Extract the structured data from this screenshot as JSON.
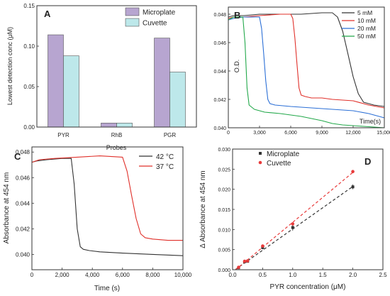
{
  "chart_data": [
    {
      "panel": "A",
      "type": "bar",
      "xlabel": "Probes",
      "ylabel": "Lowest detection conc (μM)",
      "categories": [
        "PYR",
        "RhB",
        "PGR"
      ],
      "ylim": [
        0,
        0.15
      ],
      "yticks": [
        "0.00",
        "0.05",
        "0.10",
        "0.15"
      ],
      "legend_position": "top-right",
      "series": [
        {
          "name": "Microplate",
          "color": "#b7a5d0",
          "values": [
            0.114,
            0.005,
            0.11
          ]
        },
        {
          "name": "Cuvette",
          "color": "#bde8ea",
          "values": [
            0.088,
            0.005,
            0.068
          ]
        }
      ]
    },
    {
      "panel": "B",
      "type": "line",
      "xlabel": "Time(s)",
      "ylabel": "O.D.",
      "xlim": [
        0,
        15000
      ],
      "ylim": [
        0.04,
        0.0485
      ],
      "xticks": [
        "0",
        "3,000",
        "6,000",
        "9,000",
        "12,000",
        "15,000"
      ],
      "yticks": [
        "0.040",
        "0.042",
        "0.044",
        "0.046",
        "0.048"
      ],
      "legend_position": "top-right",
      "series": [
        {
          "name": "5 mM",
          "color": "#333333",
          "x": [
            0,
            500,
            1500,
            3000,
            5000,
            7000,
            9000,
            10000,
            10500,
            11000,
            11500,
            12000,
            12500,
            13000,
            14000,
            15000
          ],
          "y": [
            0.0478,
            0.0479,
            0.0479,
            0.048,
            0.048,
            0.048,
            0.0481,
            0.0481,
            0.0478,
            0.0468,
            0.0452,
            0.0436,
            0.0424,
            0.0418,
            0.0416,
            0.0415
          ]
        },
        {
          "name": "10 mM",
          "color": "#e0302a",
          "x": [
            0,
            500,
            1500,
            3000,
            5000,
            6000,
            6200,
            6400,
            6600,
            6800,
            7000,
            7400,
            8000,
            9000,
            10000,
            12000,
            13500,
            15000
          ],
          "y": [
            0.0477,
            0.0478,
            0.0478,
            0.0479,
            0.048,
            0.048,
            0.0477,
            0.0463,
            0.0445,
            0.0428,
            0.0423,
            0.0422,
            0.0421,
            0.0421,
            0.042,
            0.0419,
            0.0416,
            0.0414
          ]
        },
        {
          "name": "20 mM",
          "color": "#2b6fd6",
          "x": [
            0,
            500,
            1500,
            3000,
            3200,
            3400,
            3600,
            3800,
            4000,
            4500,
            6000,
            8000,
            10000,
            12000,
            13500,
            15000
          ],
          "y": [
            0.0476,
            0.0477,
            0.0478,
            0.0478,
            0.047,
            0.0452,
            0.0433,
            0.042,
            0.0417,
            0.0416,
            0.0415,
            0.0414,
            0.0413,
            0.0412,
            0.041,
            0.0407
          ]
        },
        {
          "name": "50 mM",
          "color": "#22a84a",
          "x": [
            0,
            500,
            1000,
            1400,
            1600,
            1800,
            2000,
            2500,
            3500,
            5000,
            7000,
            9000,
            10000,
            11000,
            13000,
            15000
          ],
          "y": [
            0.0476,
            0.0478,
            0.0478,
            0.0478,
            0.046,
            0.0428,
            0.0416,
            0.0413,
            0.0411,
            0.041,
            0.0408,
            0.0405,
            0.0403,
            0.0402,
            0.0401,
            0.04
          ]
        }
      ]
    },
    {
      "panel": "C",
      "type": "line",
      "xlabel": "Time (s)",
      "ylabel": "Absorbance at 454 nm",
      "xlim": [
        0,
        10000
      ],
      "ylim": [
        0.0388,
        0.0484
      ],
      "xticks": [
        "0",
        "2,000",
        "4,000",
        "6,000",
        "8,000",
        "10,000"
      ],
      "yticks": [
        "0.040",
        "0.042",
        "0.044",
        "0.046",
        "0.048"
      ],
      "legend_position": "top-right",
      "series": [
        {
          "name": "42 °C",
          "color": "#333333",
          "x": [
            0,
            300,
            1000,
            2000,
            2600,
            2800,
            3000,
            3200,
            3400,
            3800,
            4500,
            6000,
            8000,
            10000
          ],
          "y": [
            0.0472,
            0.0473,
            0.0474,
            0.0475,
            0.0475,
            0.0455,
            0.042,
            0.0406,
            0.0404,
            0.0403,
            0.0402,
            0.0401,
            0.04,
            0.0399
          ]
        },
        {
          "name": "37 °C",
          "color": "#e0302a",
          "x": [
            0,
            500,
            1500,
            3000,
            4500,
            6000,
            6300,
            6600,
            6900,
            7200,
            7500,
            8000,
            9000,
            10000
          ],
          "y": [
            0.0472,
            0.0474,
            0.0475,
            0.0476,
            0.0477,
            0.0476,
            0.0465,
            0.0446,
            0.0428,
            0.0416,
            0.0413,
            0.0412,
            0.0411,
            0.0411
          ]
        }
      ]
    },
    {
      "panel": "D",
      "type": "scatter",
      "xlabel": "PYR concentration (μM)",
      "ylabel": "Δ Absorbance at 454 nm",
      "xlim": [
        0,
        2.5
      ],
      "ylim": [
        0,
        0.03
      ],
      "xticks": [
        "0.0",
        "0.5",
        "1.0",
        "1.5",
        "2.0",
        "2.5"
      ],
      "yticks": [
        "0.000",
        "0.005",
        "0.010",
        "0.015",
        "0.020",
        "0.025",
        "0.030"
      ],
      "legend_position": "top-left",
      "series": [
        {
          "name": "Microplate",
          "color": "#333333",
          "marker": "square",
          "x": [
            0.1,
            0.2,
            0.25,
            0.5,
            1.0,
            2.0
          ],
          "y": [
            0.0005,
            0.002,
            0.0021,
            0.0055,
            0.0105,
            0.0206
          ],
          "err": [
            0.0002,
            0.0002,
            0.0002,
            0.0004,
            0.0008,
            0.0006
          ],
          "fit": {
            "x": [
              0.05,
              2.0
            ],
            "y": [
              0.0001,
              0.0207
            ]
          }
        },
        {
          "name": "Cuvette",
          "color": "#e83a3a",
          "marker": "circle",
          "x": [
            0.1,
            0.2,
            0.25,
            0.5,
            1.0,
            2.0
          ],
          "y": [
            0.0006,
            0.0021,
            0.0022,
            0.0059,
            0.0114,
            0.0244
          ],
          "err": [
            0,
            0,
            0,
            0,
            0,
            0
          ],
          "fit": {
            "x": [
              0.05,
              2.0
            ],
            "y": [
              0.0,
              0.0242
            ]
          }
        }
      ]
    }
  ]
}
